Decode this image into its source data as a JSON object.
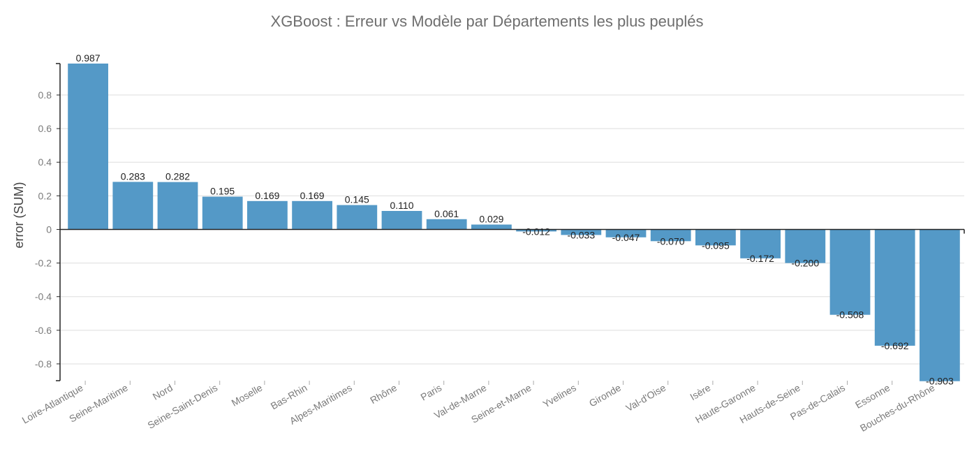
{
  "chart_data": {
    "type": "bar",
    "title": "XGBoost : Erreur vs Modèle par Départements les plus peuplés",
    "xlabel": "",
    "ylabel": "error (SUM)",
    "ylim": [
      -0.9,
      0.987
    ],
    "yticks": [
      -0.8,
      -0.6,
      -0.4,
      -0.2,
      0,
      0.2,
      0.4,
      0.6,
      0.8
    ],
    "ytick_labels": [
      "-0.8",
      "-0.6",
      "-0.4",
      "-0.2",
      "0",
      "0.2",
      "0.4",
      "0.6",
      "0.8"
    ],
    "grid": true,
    "legend": "none",
    "bar_color": "#5499c7",
    "categories": [
      "Loire-Atlantique",
      "Seine-Maritime",
      "Nord",
      "Seine-Saint-Denis",
      "Moselle",
      "Bas-Rhin",
      "Alpes-Maritimes",
      "Rhône",
      "Paris",
      "Val-de-Marne",
      "Seine-et-Marne",
      "Yvelines",
      "Gironde",
      "Val-d'Oise",
      "Isère",
      "Haute-Garonne",
      "Hauts-de-Seine",
      "Pas-de-Calais",
      "Essonne",
      "Bouches-du-Rhône"
    ],
    "values": [
      0.987,
      0.283,
      0.282,
      0.195,
      0.169,
      0.169,
      0.145,
      0.11,
      0.061,
      0.029,
      -0.012,
      -0.033,
      -0.047,
      -0.07,
      -0.095,
      -0.172,
      -0.2,
      -0.508,
      -0.692,
      -0.903
    ],
    "value_labels": [
      "0.987",
      "0.283",
      "0.282",
      "0.195",
      "0.169",
      "0.169",
      "0.145",
      "0.110",
      "0.061",
      "0.029",
      "-0.012",
      "-0.033",
      "-0.047",
      "-0.070",
      "-0.095",
      "-0.172",
      "-0.200",
      "-0.508",
      "-0.692",
      "-0.903"
    ]
  }
}
